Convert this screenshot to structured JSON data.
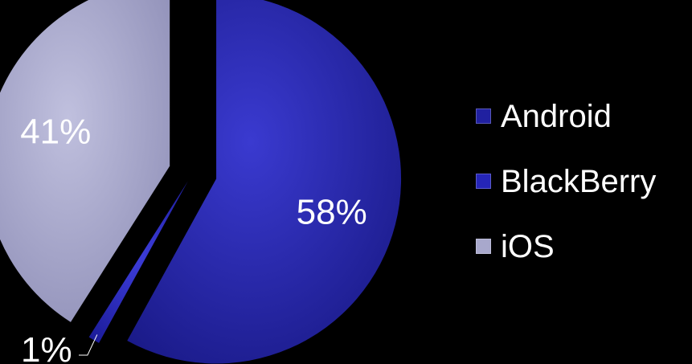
{
  "chart_data": {
    "type": "pie",
    "title": "",
    "series": [
      {
        "name": "Android",
        "value": 58,
        "label": "58%",
        "color": "#2020a0"
      },
      {
        "name": "BlackBerry",
        "value": 1,
        "label": "1%",
        "color": "#2525b8"
      },
      {
        "name": "iOS",
        "value": 41,
        "label": "41%",
        "color": "#a8a8cc"
      }
    ],
    "legend": {
      "placement": "right",
      "items": [
        "Android",
        "BlackBerry",
        "iOS"
      ]
    },
    "exploded": true
  }
}
